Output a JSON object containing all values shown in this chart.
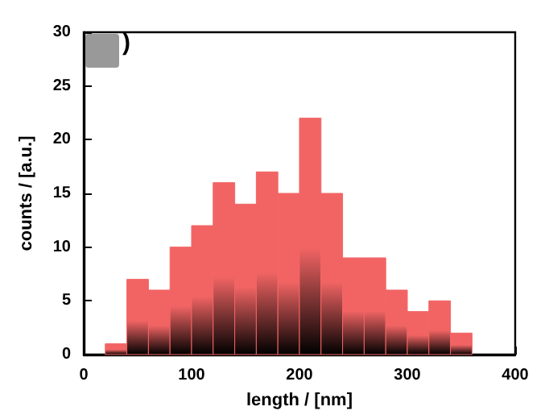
{
  "chart_data": {
    "type": "histogram",
    "xlabel": "length / [nm]",
    "ylabel": "counts / [a.u.]",
    "annotations": [
      ")"
    ],
    "bins": [
      20,
      40,
      60,
      80,
      100,
      120,
      140,
      160,
      180,
      200,
      220,
      240,
      260,
      280,
      300,
      320,
      340,
      360
    ],
    "values": [
      1,
      7,
      6,
      10,
      12,
      16,
      14,
      17,
      15,
      22,
      15,
      9,
      9,
      6,
      4,
      5,
      2
    ],
    "color": "#f26464",
    "xlim": [
      0,
      400
    ],
    "xticks": [
      0,
      100,
      200,
      300,
      400
    ],
    "ylim": [
      0,
      30
    ],
    "yticks": [
      0,
      5,
      10,
      15,
      20,
      25,
      30
    ],
    "grid": false
  }
}
